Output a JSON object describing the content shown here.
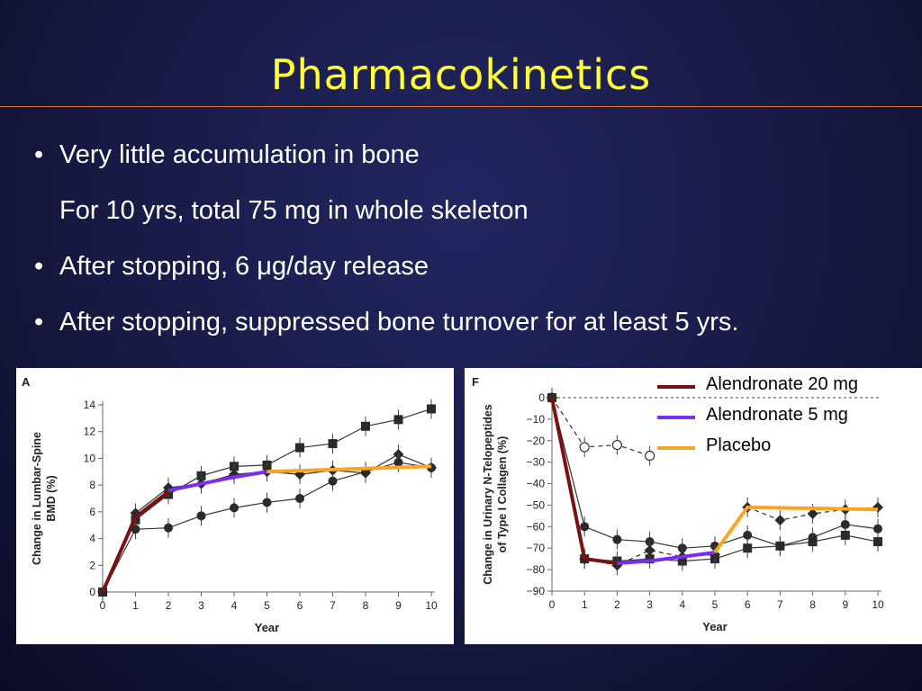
{
  "slide": {
    "title": "Pharmacokinetics",
    "bullets": [
      {
        "marker": "•",
        "text": "Very little accumulation in bone"
      },
      {
        "marker": "",
        "text": "For 10 yrs, total 75 mg in whole skeleton"
      },
      {
        "marker": "•",
        "text": "After stopping, 6 μg/day release"
      },
      {
        "marker": "•",
        "text": "After stopping, suppressed bone turnover for at least 5 yrs."
      }
    ],
    "colors": {
      "title": "#ffff33",
      "rule": "#e0762a",
      "background": "#171a44"
    }
  },
  "legend": [
    {
      "label": "Alendronate 20 mg",
      "color": "#7a1010"
    },
    {
      "label": "Alendronate 5 mg",
      "color": "#7a2cf0"
    },
    {
      "label": "Placebo",
      "color": "#f5a623"
    }
  ],
  "chart_data": [
    {
      "panel": "A",
      "type": "line",
      "ylabel": "Change in Lumbar-Spine BMD (%)",
      "xlabel": "Year",
      "x_ticks": [
        0,
        1,
        2,
        3,
        4,
        5,
        6,
        7,
        8,
        9,
        10
      ],
      "y_ticks": [
        0,
        2,
        4,
        6,
        8,
        10,
        12,
        14
      ],
      "ylim": [
        0,
        14
      ],
      "xlim": [
        0,
        10
      ],
      "series": [
        {
          "marker": "square",
          "x": [
            0,
            1,
            2,
            3,
            4,
            5,
            6,
            7,
            8,
            9,
            10
          ],
          "y": [
            0,
            5.4,
            7.3,
            8.7,
            9.4,
            9.5,
            10.8,
            11.1,
            12.4,
            12.9,
            13.7
          ]
        },
        {
          "marker": "diamond",
          "x": [
            0,
            1,
            2,
            3,
            4,
            5,
            6,
            7,
            8,
            9,
            10
          ],
          "y": [
            0,
            5.9,
            7.8,
            8.1,
            8.8,
            9.0,
            8.8,
            9.1,
            8.9,
            10.3,
            9.3
          ]
        },
        {
          "marker": "circle",
          "x": [
            0,
            1,
            2,
            3,
            4,
            5,
            6,
            7,
            8,
            9,
            10
          ],
          "y": [
            0,
            4.7,
            4.8,
            5.7,
            6.3,
            6.7,
            7.0,
            8.3,
            9.0,
            9.7,
            9.3
          ]
        }
      ],
      "overlays": [
        {
          "legend": 0,
          "x": [
            0,
            1,
            2
          ],
          "y": [
            0,
            5.6,
            7.5
          ]
        },
        {
          "legend": 1,
          "x": [
            2,
            3,
            4,
            5
          ],
          "y": [
            7.6,
            8.1,
            8.6,
            9.0
          ]
        },
        {
          "legend": 2,
          "x": [
            5,
            10
          ],
          "y": [
            9.0,
            9.4
          ]
        }
      ]
    },
    {
      "panel": "F",
      "type": "line",
      "ylabel": "Change in Urinary N-Telopeptides of Type I Collagen (%)",
      "xlabel": "Year",
      "x_ticks": [
        0,
        1,
        2,
        3,
        4,
        5,
        6,
        7,
        8,
        9,
        10
      ],
      "y_ticks": [
        0,
        -10,
        -20,
        -30,
        -40,
        -50,
        -60,
        -70,
        -80,
        -90
      ],
      "ylim": [
        -90,
        0
      ],
      "xlim": [
        0,
        10
      ],
      "series": [
        {
          "marker": "open-circle",
          "dashed": true,
          "x": [
            0,
            1,
            2,
            3
          ],
          "y": [
            0,
            -23,
            -22,
            -27
          ]
        },
        {
          "marker": "circle",
          "x": [
            0,
            1,
            2,
            3,
            4,
            5,
            6,
            7,
            8,
            9,
            10
          ],
          "y": [
            0,
            -60,
            -66,
            -67,
            -70,
            -69,
            -64,
            -69,
            -65,
            -59,
            -61
          ]
        },
        {
          "marker": "square",
          "x": [
            0,
            1,
            2,
            3,
            4,
            5,
            6,
            7,
            8,
            9,
            10
          ],
          "y": [
            0,
            -75,
            -76,
            -75,
            -76,
            -75,
            -70,
            -69,
            -67,
            -64,
            -67
          ]
        },
        {
          "marker": "diamond",
          "dashed": true,
          "x": [
            0,
            1,
            2,
            3,
            4,
            5,
            6,
            7,
            8,
            9,
            10
          ],
          "y": [
            0,
            -75,
            -78,
            -71,
            -74,
            -73,
            -51,
            -57,
            -54,
            -52,
            -51
          ]
        }
      ],
      "overlays": [
        {
          "legend": 0,
          "x": [
            0,
            1,
            2
          ],
          "y": [
            0,
            -75,
            -77
          ]
        },
        {
          "legend": 1,
          "x": [
            2,
            3,
            4,
            5
          ],
          "y": [
            -77,
            -76,
            -74,
            -72
          ]
        },
        {
          "legend": 2,
          "x": [
            5,
            6,
            10
          ],
          "y": [
            -72,
            -51,
            -52
          ]
        }
      ]
    }
  ]
}
